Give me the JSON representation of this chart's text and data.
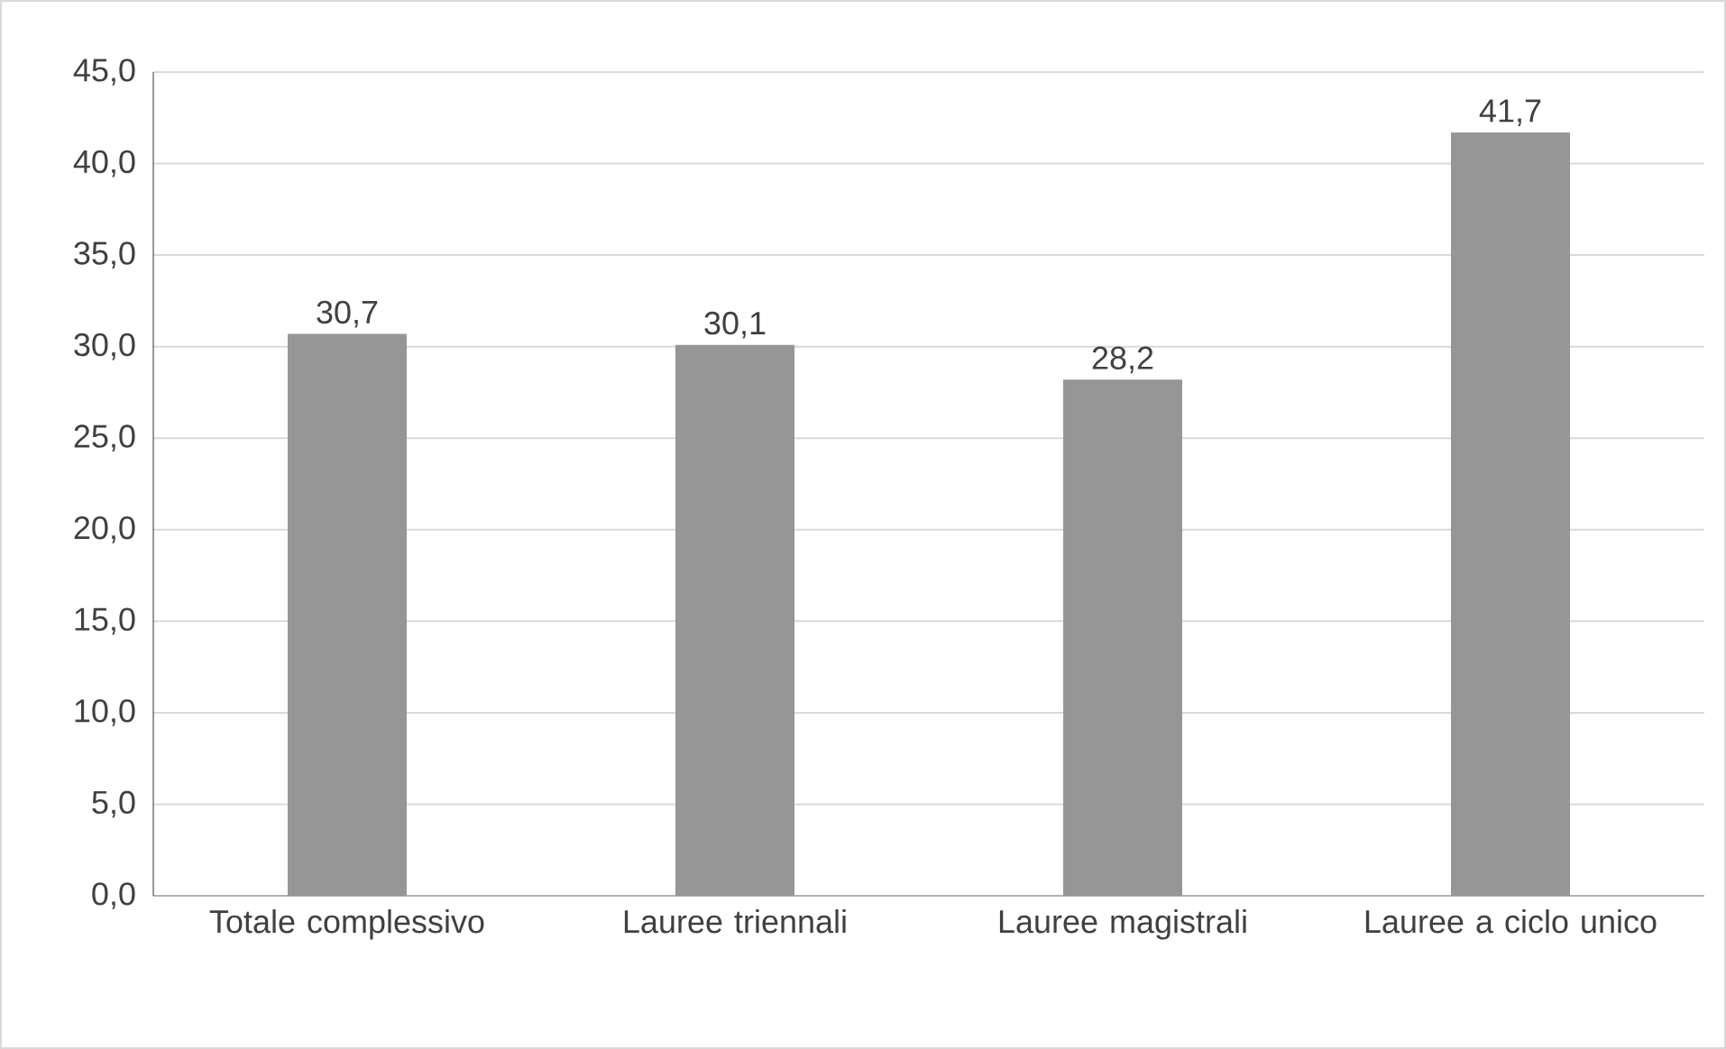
{
  "chart_data": {
    "type": "bar",
    "categories": [
      "Totale complessivo",
      "Lauree triennali",
      "Lauree magistrali",
      "Lauree a ciclo unico"
    ],
    "values": [
      30.7,
      30.1,
      28.2,
      41.7
    ],
    "value_labels": [
      "30,7",
      "30,1",
      "28,2",
      "41,7"
    ],
    "color": "#969696",
    "ylim": [
      0,
      45
    ],
    "yticks": [
      {
        "value": 0,
        "label": "0,0"
      },
      {
        "value": 5,
        "label": "5,0"
      },
      {
        "value": 10,
        "label": "10,0"
      },
      {
        "value": 15,
        "label": "15,0"
      },
      {
        "value": 20,
        "label": "20,0"
      },
      {
        "value": 25,
        "label": "25,0"
      },
      {
        "value": 30,
        "label": "30,0"
      },
      {
        "value": 35,
        "label": "35,0"
      },
      {
        "value": 40,
        "label": "40,0"
      },
      {
        "value": 45,
        "label": "45,0"
      }
    ],
    "grid": "y"
  }
}
